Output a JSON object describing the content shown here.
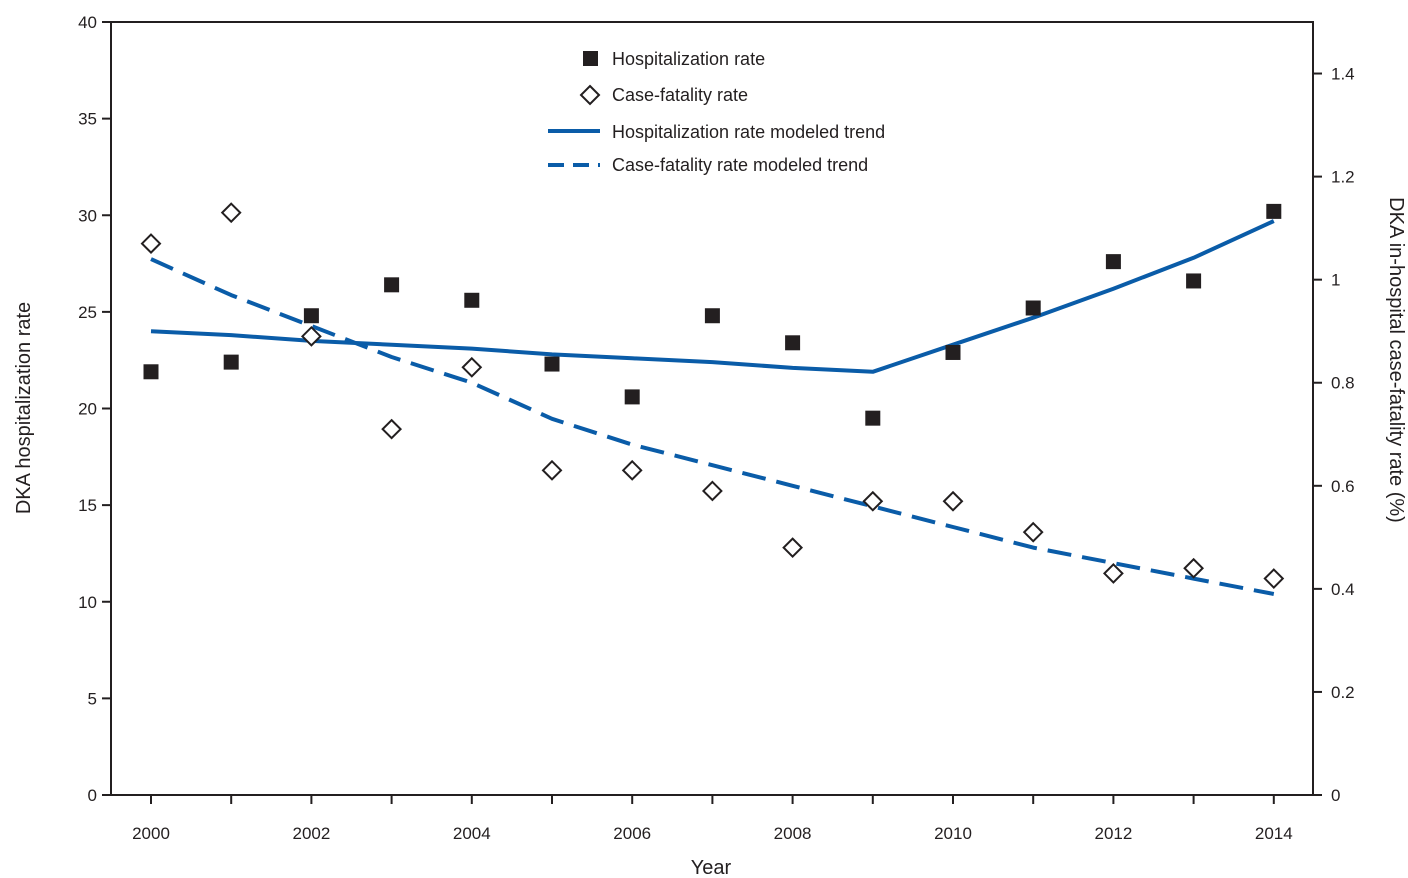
{
  "chart_data": {
    "type": "line",
    "x": [
      2000,
      2001,
      2002,
      2003,
      2004,
      2005,
      2006,
      2007,
      2008,
      2009,
      2010,
      2011,
      2012,
      2013,
      2014
    ],
    "x_ticks": [
      "2000",
      "2002",
      "2004",
      "2006",
      "2008",
      "2010",
      "2012",
      "2014"
    ],
    "xlabel": "Year",
    "ylabel_left": "DKA hospitalization rate",
    "ylabel_right": "DKA in-hospital case-fatality rate (%)",
    "ylim_left": [
      0,
      40
    ],
    "ylim_right": [
      0,
      1.5
    ],
    "y_ticks_left": [
      "0",
      "5",
      "10",
      "15",
      "20",
      "25",
      "30",
      "35",
      "40"
    ],
    "y_ticks_right": [
      "0",
      "0.2",
      "0.4",
      "0.6",
      "0.8",
      "1",
      "1.2",
      "1.4"
    ],
    "grid": false,
    "legend_position": "top-center",
    "series": [
      {
        "name": "Hospitalization rate",
        "kind": "scatter",
        "marker": "square",
        "axis": "left",
        "color": "#231f20",
        "values": [
          21.9,
          22.4,
          24.8,
          26.4,
          25.6,
          22.3,
          20.6,
          24.8,
          23.4,
          19.5,
          22.9,
          25.2,
          27.6,
          26.6,
          30.2
        ]
      },
      {
        "name": "Case-fatality rate",
        "kind": "scatter",
        "marker": "diamond",
        "axis": "right",
        "color": "#231f20",
        "values": [
          1.07,
          1.13,
          0.89,
          0.71,
          0.83,
          0.63,
          0.63,
          0.59,
          0.48,
          0.57,
          0.57,
          0.51,
          0.43,
          0.44,
          0.42
        ]
      },
      {
        "name": "Hospitalization rate modeled trend",
        "kind": "line",
        "style": "solid",
        "axis": "left",
        "color": "#0a5ca8",
        "values": [
          24.0,
          23.8,
          23.5,
          23.3,
          23.1,
          22.8,
          22.6,
          22.4,
          22.1,
          21.9,
          23.3,
          24.7,
          26.2,
          27.8,
          29.7
        ]
      },
      {
        "name": "Case-fatality rate modeled trend",
        "kind": "line",
        "style": "dashed",
        "axis": "right",
        "color": "#0a5ca8",
        "values": [
          1.04,
          0.97,
          0.91,
          0.85,
          0.8,
          0.73,
          0.68,
          0.64,
          0.6,
          0.56,
          0.52,
          0.48,
          0.45,
          0.42,
          0.39
        ]
      }
    ]
  }
}
